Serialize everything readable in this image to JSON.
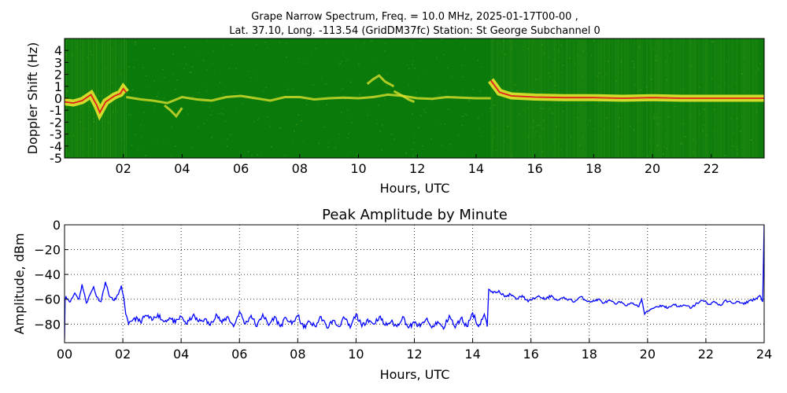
{
  "figure": {
    "title_line1": "Grape Narrow Spectrum, Freq. = 10.0 MHz, 2025-01-17T00-00 ,",
    "title_line2": "Lat.  37.10, Long. -113.54 (GridDM37fc) Station: St George Subchannel 0"
  },
  "chart_data": [
    {
      "type": "heatmap",
      "title": "",
      "xlabel": "Hours, UTC",
      "ylabel": "Doppler Shift (Hz)",
      "xlim": [
        0,
        23.8
      ],
      "ylim": [
        -5,
        5
      ],
      "x_ticks": [
        2,
        4,
        6,
        8,
        10,
        12,
        14,
        16,
        18,
        20,
        22
      ],
      "x_tick_labels": [
        "02",
        "04",
        "06",
        "08",
        "10",
        "12",
        "14",
        "16",
        "18",
        "20",
        "22"
      ],
      "y_ticks": [
        4,
        3,
        2,
        1,
        0,
        -1,
        -2,
        -3,
        -4,
        -5
      ],
      "y_tick_labels": [
        "4",
        "3",
        "2",
        "1",
        "0",
        "-1",
        "-2",
        "-3",
        "-4",
        "-5"
      ],
      "colors": {
        "background": "#0a7a0a",
        "noise": "#3d9b1a",
        "signal": "#e6e62e",
        "peak": "#e0201a"
      },
      "peak_trace": [
        [
          0.0,
          -0.3
        ],
        [
          0.3,
          -0.4
        ],
        [
          0.6,
          -0.2
        ],
        [
          0.9,
          0.3
        ],
        [
          1.1,
          -0.6
        ],
        [
          1.2,
          -1.2
        ],
        [
          1.4,
          -0.3
        ],
        [
          1.7,
          0.2
        ],
        [
          1.9,
          0.4
        ],
        [
          2.0,
          0.8
        ],
        [
          2.1,
          0.5
        ],
        [
          14.5,
          1.5
        ],
        [
          14.8,
          0.5
        ],
        [
          15.2,
          0.2
        ],
        [
          16.0,
          0.1
        ],
        [
          17.0,
          0.05
        ],
        [
          18.0,
          0.05
        ],
        [
          19.0,
          0.0
        ],
        [
          20.0,
          0.05
        ],
        [
          21.0,
          0.0
        ],
        [
          22.0,
          0.0
        ],
        [
          23.0,
          0.0
        ],
        [
          23.8,
          0.0
        ]
      ],
      "signal_segments": [
        {
          "x": [
            2.1,
            2.6,
            3.0,
            3.5,
            4.0,
            4.5,
            5.0,
            5.5,
            6.0,
            6.5,
            7.0,
            7.5,
            8.0,
            8.5,
            9.0,
            9.5,
            10.0,
            10.5,
            11.0,
            11.5,
            12.0,
            12.5,
            13.0,
            13.5,
            14.0,
            14.5
          ],
          "y": [
            0.1,
            -0.1,
            -0.2,
            -0.4,
            0.1,
            -0.1,
            -0.2,
            0.1,
            0.2,
            0.0,
            -0.2,
            0.1,
            0.1,
            -0.1,
            0.0,
            0.05,
            0.0,
            0.1,
            0.3,
            0.2,
            0.0,
            -0.05,
            0.1,
            0.05,
            0.0,
            0.0
          ]
        },
        {
          "x": [
            3.4,
            3.6,
            3.8,
            4.0
          ],
          "y": [
            -0.6,
            -1.0,
            -1.5,
            -0.8
          ]
        },
        {
          "x": [
            10.3,
            10.5,
            10.7,
            10.9,
            11.2
          ],
          "y": [
            1.2,
            1.6,
            1.9,
            1.4,
            1.0
          ]
        },
        {
          "x": [
            11.2,
            11.5,
            11.7,
            11.9
          ],
          "y": [
            0.6,
            0.2,
            -0.1,
            -0.3
          ]
        }
      ],
      "noisy_intervals": [
        [
          0,
          2.1
        ],
        [
          14.5,
          23.8
        ]
      ]
    },
    {
      "type": "line",
      "title": "Peak Amplitude by Minute",
      "xlabel": "Hours, UTC",
      "ylabel": "Amplitude, dBm",
      "xlim": [
        0,
        24
      ],
      "ylim": [
        -95,
        0
      ],
      "x_ticks": [
        0,
        2,
        4,
        6,
        8,
        10,
        12,
        14,
        16,
        18,
        20,
        22,
        24
      ],
      "x_tick_labels": [
        "00",
        "02",
        "04",
        "06",
        "08",
        "10",
        "12",
        "14",
        "16",
        "18",
        "20",
        "22",
        "24"
      ],
      "y_ticks": [
        0,
        -20,
        -40,
        -60,
        -80
      ],
      "y_tick_labels": [
        "0",
        "−20",
        "−40",
        "−60",
        "−80"
      ],
      "grid": true,
      "line_color": "#0000ff",
      "series": [
        {
          "x": [
            0.0,
            0.02,
            0.05,
            0.2,
            0.35,
            0.5,
            0.6,
            0.75,
            0.9,
            1.0,
            1.1,
            1.25,
            1.4,
            1.55,
            1.7,
            1.85,
            1.95,
            2.05,
            2.1,
            2.2,
            2.4,
            2.6,
            2.8,
            3.0,
            3.2,
            3.4,
            3.6,
            3.8,
            4.0,
            4.2,
            4.4,
            4.6,
            4.8,
            5.0,
            5.2,
            5.4,
            5.6,
            5.8,
            6.0,
            6.2,
            6.4,
            6.6,
            6.8,
            7.0,
            7.2,
            7.4,
            7.6,
            7.8,
            8.0,
            8.2,
            8.4,
            8.6,
            8.8,
            9.0,
            9.2,
            9.4,
            9.6,
            9.8,
            10.0,
            10.2,
            10.4,
            10.6,
            10.8,
            11.0,
            11.2,
            11.4,
            11.6,
            11.8,
            12.0,
            12.2,
            12.4,
            12.6,
            12.8,
            13.0,
            13.2,
            13.4,
            13.6,
            13.8,
            14.0,
            14.2,
            14.4,
            14.5,
            14.55,
            14.7,
            14.9,
            15.1,
            15.3,
            15.5,
            15.7,
            15.9,
            16.1,
            16.3,
            16.5,
            16.7,
            16.9,
            17.1,
            17.3,
            17.5,
            17.7,
            17.9,
            18.1,
            18.3,
            18.5,
            18.7,
            18.9,
            19.1,
            19.3,
            19.5,
            19.7,
            19.8,
            19.9,
            20.1,
            20.3,
            20.5,
            20.7,
            20.9,
            21.1,
            21.3,
            21.5,
            21.7,
            21.9,
            22.1,
            22.3,
            22.5,
            22.7,
            22.9,
            23.1,
            23.3,
            23.5,
            23.7,
            23.85,
            23.95,
            24.0
          ],
          "y": [
            -92,
            -60,
            -58,
            -62,
            -55,
            -60,
            -48,
            -63,
            -55,
            -50,
            -58,
            -62,
            -46,
            -58,
            -61,
            -56,
            -49,
            -62,
            -72,
            -80,
            -75,
            -78,
            -73,
            -77,
            -72,
            -78,
            -75,
            -79,
            -74,
            -80,
            -73,
            -78,
            -76,
            -81,
            -72,
            -79,
            -74,
            -82,
            -70,
            -80,
            -73,
            -82,
            -72,
            -81,
            -74,
            -82,
            -75,
            -80,
            -73,
            -83,
            -78,
            -82,
            -74,
            -83,
            -77,
            -82,
            -75,
            -83,
            -72,
            -82,
            -76,
            -80,
            -74,
            -81,
            -78,
            -82,
            -74,
            -83,
            -79,
            -82,
            -76,
            -83,
            -78,
            -84,
            -73,
            -83,
            -75,
            -82,
            -71,
            -82,
            -72,
            -82,
            -52,
            -55,
            -53,
            -58,
            -56,
            -60,
            -57,
            -62,
            -59,
            -58,
            -60,
            -57,
            -61,
            -59,
            -60,
            -62,
            -58,
            -61,
            -62,
            -60,
            -63,
            -61,
            -64,
            -62,
            -65,
            -63,
            -66,
            -60,
            -72,
            -68,
            -66,
            -65,
            -67,
            -64,
            -66,
            -65,
            -67,
            -63,
            -61,
            -64,
            -62,
            -65,
            -61,
            -63,
            -62,
            -64,
            -61,
            -60,
            -57,
            -62,
            0
          ]
        }
      ]
    }
  ]
}
